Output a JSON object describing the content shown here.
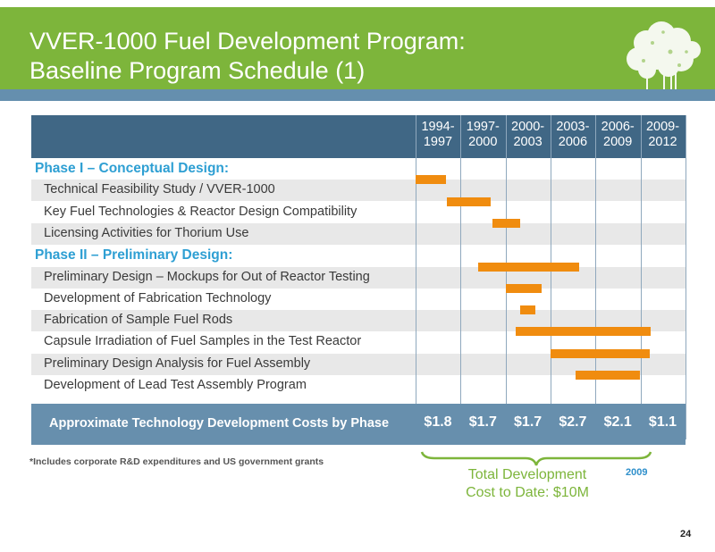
{
  "header": {
    "title_line1": "VVER-1000 Fuel Development Program:",
    "title_line2": "Baseline Program Schedule (1)",
    "logo_icon": "tree-logo-icon",
    "header_color": "#7db53b",
    "band_color": "#658fae"
  },
  "chart_data": {
    "type": "gantt",
    "title": "VVER-1000 Fuel Development Program: Baseline Program Schedule (1)",
    "periods": [
      "1994-1997",
      "1997-2000",
      "2000-2003",
      "2003-2006",
      "2006-2009",
      "2009-2012"
    ],
    "period_labels": [
      {
        "top": "1994-",
        "bottom": "1997"
      },
      {
        "top": "1997-",
        "bottom": "2000"
      },
      {
        "top": "2000-",
        "bottom": "2003"
      },
      {
        "top": "2003-",
        "bottom": "2006"
      },
      {
        "top": "2006-",
        "bottom": "2009"
      },
      {
        "top": "2009-",
        "bottom": "2012"
      }
    ],
    "xrange": [
      1994,
      2012
    ],
    "bar_color": "#f08c0f",
    "rows": [
      {
        "type": "phase",
        "label": "Phase I – Conceptual Design:"
      },
      {
        "type": "task",
        "label": "Technical Feasibility Study / VVER-1000",
        "start": 1994.0,
        "end": 1996.0
      },
      {
        "type": "task",
        "label": "Key Fuel Technologies & Reactor Design Compatibility",
        "start": 1996.1,
        "end": 1999.0
      },
      {
        "type": "task",
        "label": "Licensing Activities for Thorium Use",
        "start": 1999.1,
        "end": 2001.0
      },
      {
        "type": "phase",
        "label": "Phase II – Preliminary Design:"
      },
      {
        "type": "task",
        "label": "Preliminary Design – Mockups for Out of Reactor Testing",
        "start": 1998.2,
        "end": 2004.9
      },
      {
        "type": "task",
        "label": "Development of Fabrication Technology",
        "start": 2000.0,
        "end": 2002.4
      },
      {
        "type": "task",
        "label": "Fabrication of Sample Fuel Rods",
        "start": 2001.0,
        "end": 2002.0
      },
      {
        "type": "task",
        "label": "Capsule Irradiation of Fuel Samples in the Test Reactor",
        "start": 2000.7,
        "end": 2009.7
      },
      {
        "type": "task",
        "label": "Preliminary Design Analysis for Fuel Assembly",
        "start": 2003.0,
        "end": 2009.6
      },
      {
        "type": "task",
        "label": "Development of Lead Test Assembly Program",
        "start": 2004.7,
        "end": 2009.0
      }
    ],
    "costs": {
      "label": "Approximate Technology Development Costs by Phase",
      "values": [
        "$1.8",
        "$1.7",
        "$1.7",
        "$2.7",
        "$2.1",
        "$1.1"
      ],
      "unit": "$M"
    },
    "annotation": {
      "brace_span": [
        "1994-1997",
        "2006-2009"
      ],
      "text_line1": "Total Development",
      "text_line2": "Cost to Date: $10M",
      "year": "2009"
    }
  },
  "footer": {
    "footnote": "*Includes corporate R&D expenditures and US government grants",
    "page_number": "24"
  }
}
